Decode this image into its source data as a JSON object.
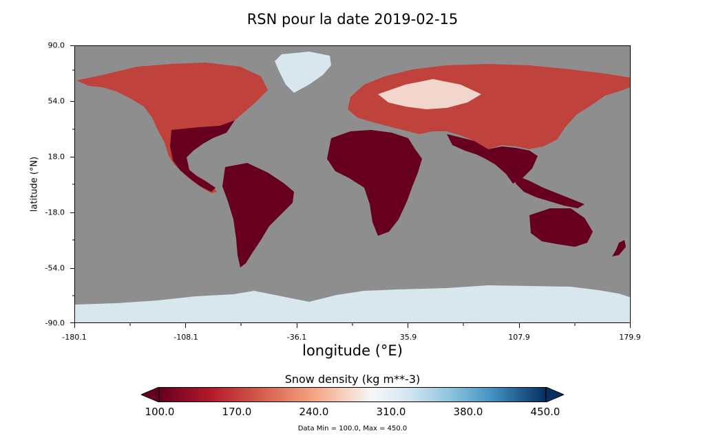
{
  "title": "RSN pour la date 2019-02-15",
  "x_axis": {
    "label": "longitude (°E)",
    "ticks": [
      "-180.1",
      "-108.1",
      "-36.1",
      "35.9",
      "107.9",
      "179.9"
    ]
  },
  "y_axis": {
    "label": "latitude (°N)",
    "ticks": [
      "90.0",
      "54.0",
      "18.0",
      "-18.0",
      "-54.0",
      "-90.0"
    ]
  },
  "colorbar": {
    "title": "Snow density (kg m**-3)",
    "ticks": [
      "100.0",
      "170.0",
      "240.0",
      "310.0",
      "380.0",
      "450.0"
    ],
    "min": 100.0,
    "max": 450.0,
    "extend": "both"
  },
  "footnote": "Data Min = 100.0, Max = 450.0",
  "colors": {
    "ocean": "#8e8e8e",
    "low": "#67001f",
    "mid_low": "#d6604d",
    "mid": "#f7f7f7",
    "mid_high": "#92c5de",
    "high": "#053061",
    "ice": "#d8e6ee"
  }
}
